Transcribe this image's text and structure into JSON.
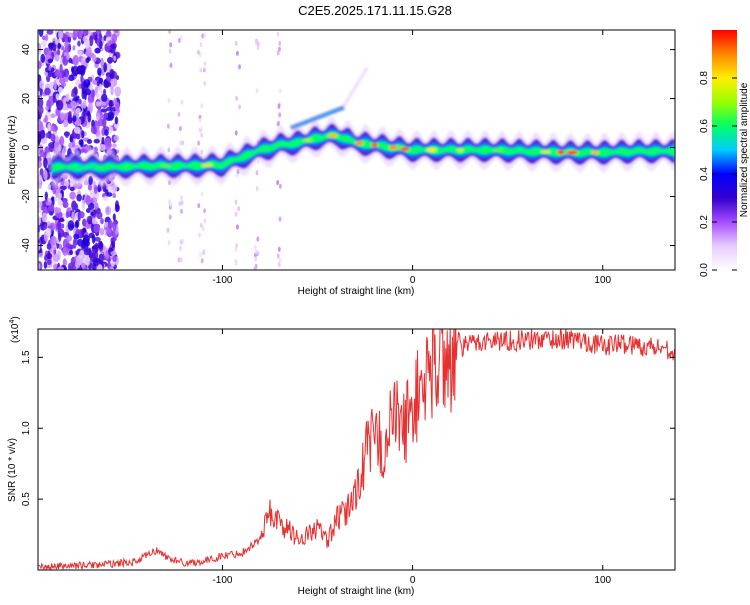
{
  "title": "C2E5.2025.171.11.15.G28",
  "chart_data": [
    {
      "type": "heatmap",
      "xlabel": "Height of straight line (km)",
      "ylabel": "Frequency (Hz)",
      "xlim": [
        -197,
        138
      ],
      "ylim": [
        -50,
        48
      ],
      "xticks": [
        -100,
        0,
        100
      ],
      "yticks": [
        -40,
        -20,
        0,
        20,
        40
      ],
      "colorbar": {
        "label": "Normalized spectral amplitude",
        "range": [
          0,
          1
        ],
        "ticks": [
          "0.0",
          "0.2",
          "0.4",
          "0.6",
          "0.8"
        ],
        "colors": [
          "#ffffff",
          "#e6ccff",
          "#a64dff",
          "#3300cc",
          "#0000ff",
          "#00ccff",
          "#00ff66",
          "#99ff00",
          "#ffee00",
          "#ff8800",
          "#ff0000"
        ]
      },
      "ridge": {
        "x": [
          -180,
          -160,
          -140,
          -120,
          -100,
          -90,
          -80,
          -70,
          -60,
          -50,
          -40,
          -30,
          -20,
          -10,
          0,
          20,
          40,
          60,
          80,
          100,
          120,
          138
        ],
        "y": [
          -8,
          -8,
          -7.5,
          -7.5,
          -7,
          -4,
          -1,
          1,
          2,
          4,
          5,
          2,
          1,
          0,
          -1,
          -1,
          -1,
          -1.5,
          -2,
          -2,
          -1.5,
          -1.5
        ]
      }
    },
    {
      "type": "line",
      "xlabel": "Height of straight line (km)",
      "ylabel": "SNR (10 * v/v)",
      "multiplier": "(x10",
      "multiplier_exp": "4",
      "xlim": [
        -197,
        138
      ],
      "ylim": [
        0,
        1.7
      ],
      "xticks": [
        -100,
        0,
        100
      ],
      "yticks": [
        0.5,
        1.0,
        1.5
      ],
      "series": [
        {
          "color": "#e83030",
          "x": [
            -197,
            -180,
            -160,
            -145,
            -135,
            -128,
            -120,
            -110,
            -100,
            -90,
            -80,
            -75,
            -70,
            -65,
            -60,
            -55,
            -50,
            -45,
            -40,
            -35,
            -30,
            -25,
            -20,
            -15,
            -10,
            -5,
            0,
            5,
            10,
            15,
            20,
            25,
            30,
            40,
            50,
            60,
            70,
            80,
            90,
            95,
            100,
            110,
            120,
            130,
            138
          ],
          "y": [
            0.02,
            0.03,
            0.04,
            0.06,
            0.14,
            0.08,
            0.05,
            0.06,
            0.1,
            0.12,
            0.22,
            0.42,
            0.33,
            0.28,
            0.22,
            0.25,
            0.3,
            0.2,
            0.35,
            0.4,
            0.55,
            0.8,
            0.95,
            0.85,
            1.1,
            1.0,
            1.15,
            1.3,
            1.45,
            1.52,
            1.48,
            1.55,
            1.6,
            1.62,
            1.62,
            1.62,
            1.63,
            1.63,
            1.62,
            1.6,
            1.58,
            1.6,
            1.58,
            1.57,
            1.55
          ]
        }
      ]
    }
  ]
}
